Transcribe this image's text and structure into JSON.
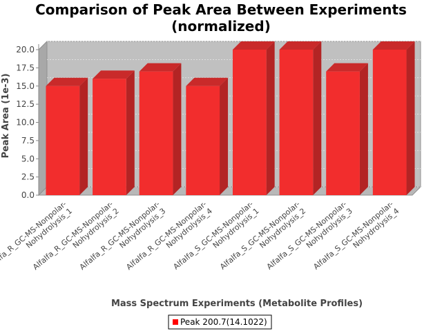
{
  "chart_data": {
    "type": "bar",
    "title": "Comparison of Peak Area Between Experiments",
    "subtitle": "(normalized)",
    "xlabel": "Mass Spectrum Experiments (Metabolite Profiles)",
    "ylabel": "Peak Area (1e-3)",
    "ylim": [
      0,
      20
    ],
    "yticks": [
      "0.0",
      "2.5",
      "5.0",
      "7.5",
      "10.0",
      "12.5",
      "15.0",
      "17.5",
      "20.0"
    ],
    "categories": [
      [
        "Alfalfa_R_GC-MS-Nonpolar-",
        "Nohydrolysis_1"
      ],
      [
        "Alfalfa_R_GC-MS-Nonpolar-",
        "Nohydrolysis_2"
      ],
      [
        "Alfalfa_R_GC-MS-Nonpolar-",
        "Nohydrolysis_3"
      ],
      [
        "Alfalfa_R_GC-MS-Nonpolar-",
        "Nohydrolysis_4"
      ],
      [
        "Alfalfa_S_GC-MS-Nonpolar-",
        "Nohydrolysis_1"
      ],
      [
        "Alfalfa_S_GC-MS-Nonpolar-",
        "Nohydrolysis_2"
      ],
      [
        "Alfalfa_S_GC-MS-Nonpolar-",
        "Nohydrolysis_3"
      ],
      [
        "Alfalfa_S_GC-MS-Nonpolar-",
        "Nohydrolysis_4"
      ]
    ],
    "series": [
      {
        "name": "Peak 200.7(14.1022)",
        "color": "#ff0000",
        "values": [
          15,
          16,
          17,
          15,
          20,
          20,
          17,
          20
        ]
      }
    ],
    "grid": true,
    "legend_position": "bottom"
  }
}
